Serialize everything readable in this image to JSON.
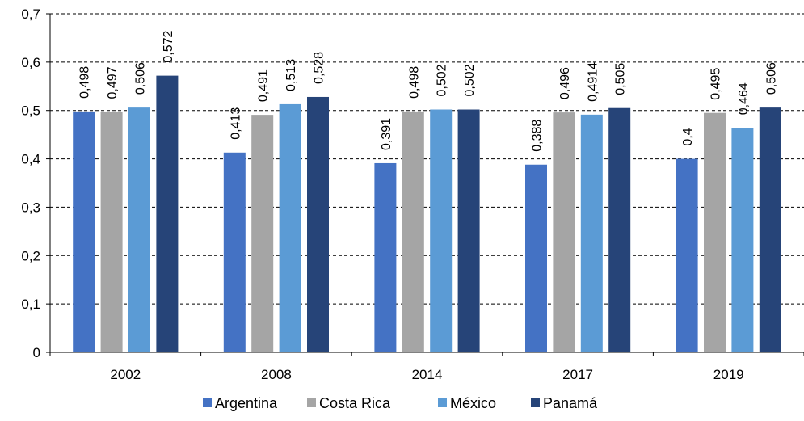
{
  "chart_data": {
    "type": "bar",
    "title": "",
    "xlabel": "",
    "ylabel": "",
    "categories": [
      "2002",
      "2008",
      "2014",
      "2017",
      "2019"
    ],
    "ylim": [
      0,
      0.7
    ],
    "y_ticks": [
      "0",
      "0,1",
      "0,2",
      "0,3",
      "0,4",
      "0,5",
      "0,6",
      "0,7"
    ],
    "grid": "horizontal-dashed",
    "legend_position": "bottom",
    "series": [
      {
        "name": "Argentina",
        "color": "#4472C4",
        "values": [
          0.498,
          0.413,
          0.391,
          0.388,
          0.4
        ],
        "labels": [
          "0,498",
          "0,413",
          "0,391",
          "0,388",
          "0,4"
        ]
      },
      {
        "name": "Costa Rica",
        "color": "#A5A5A5",
        "values": [
          0.497,
          0.491,
          0.498,
          0.496,
          0.495
        ],
        "labels": [
          "0,497",
          "0,491",
          "0,498",
          "0,496",
          "0,495"
        ]
      },
      {
        "name": "México",
        "color": "#5B9BD5",
        "values": [
          0.506,
          0.513,
          0.502,
          0.4914,
          0.464
        ],
        "labels": [
          "0,506",
          "0,513",
          "0,502",
          "0,4914",
          "0,464"
        ]
      },
      {
        "name": "Panamá",
        "color": "#264478",
        "values": [
          0.572,
          0.528,
          0.502,
          0.505,
          0.506
        ],
        "labels": [
          "0,572",
          "0,528",
          "0,502",
          "0,505",
          "0,506"
        ]
      }
    ]
  }
}
